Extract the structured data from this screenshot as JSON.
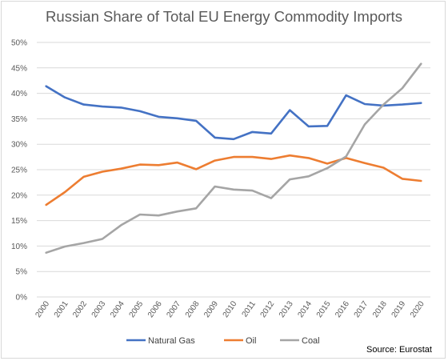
{
  "chart_data": {
    "type": "line",
    "title": "Russian Share of Total EU Energy Commodity Imports",
    "xlabel": "",
    "ylabel": "",
    "x": [
      "2000",
      "2001",
      "2002",
      "2003",
      "2004",
      "2005",
      "2006",
      "2007",
      "2008",
      "2009",
      "2010",
      "2011",
      "2012",
      "2013",
      "2014",
      "2015",
      "2016",
      "2017",
      "2018",
      "2019",
      "2020"
    ],
    "ylim": [
      0,
      50
    ],
    "yticks": [
      "0%",
      "5%",
      "10%",
      "15%",
      "20%",
      "25%",
      "30%",
      "35%",
      "40%",
      "45%",
      "50%"
    ],
    "grid": true,
    "legend_position": "bottom",
    "series": [
      {
        "name": "Natural Gas",
        "color": "#4472c4",
        "values": [
          41.4,
          39.2,
          37.8,
          37.4,
          37.2,
          36.5,
          35.4,
          35.1,
          34.6,
          31.3,
          31.0,
          32.4,
          32.1,
          36.7,
          33.5,
          33.6,
          39.6,
          37.9,
          37.6,
          37.8,
          38.1
        ]
      },
      {
        "name": "Oil",
        "color": "#ed7d31",
        "values": [
          18.1,
          20.6,
          23.6,
          24.6,
          25.2,
          26.0,
          25.9,
          26.4,
          25.1,
          26.8,
          27.5,
          27.5,
          27.1,
          27.8,
          27.3,
          26.2,
          27.3,
          26.3,
          25.4,
          23.2,
          22.8
        ]
      },
      {
        "name": "Coal",
        "color": "#a5a5a5",
        "values": [
          8.7,
          9.9,
          10.6,
          11.4,
          14.1,
          16.2,
          16.0,
          16.8,
          17.4,
          21.7,
          21.1,
          20.9,
          19.4,
          23.1,
          23.7,
          25.3,
          27.6,
          33.9,
          37.8,
          41.0,
          45.8
        ]
      }
    ],
    "source": "Source: Eurostat"
  }
}
